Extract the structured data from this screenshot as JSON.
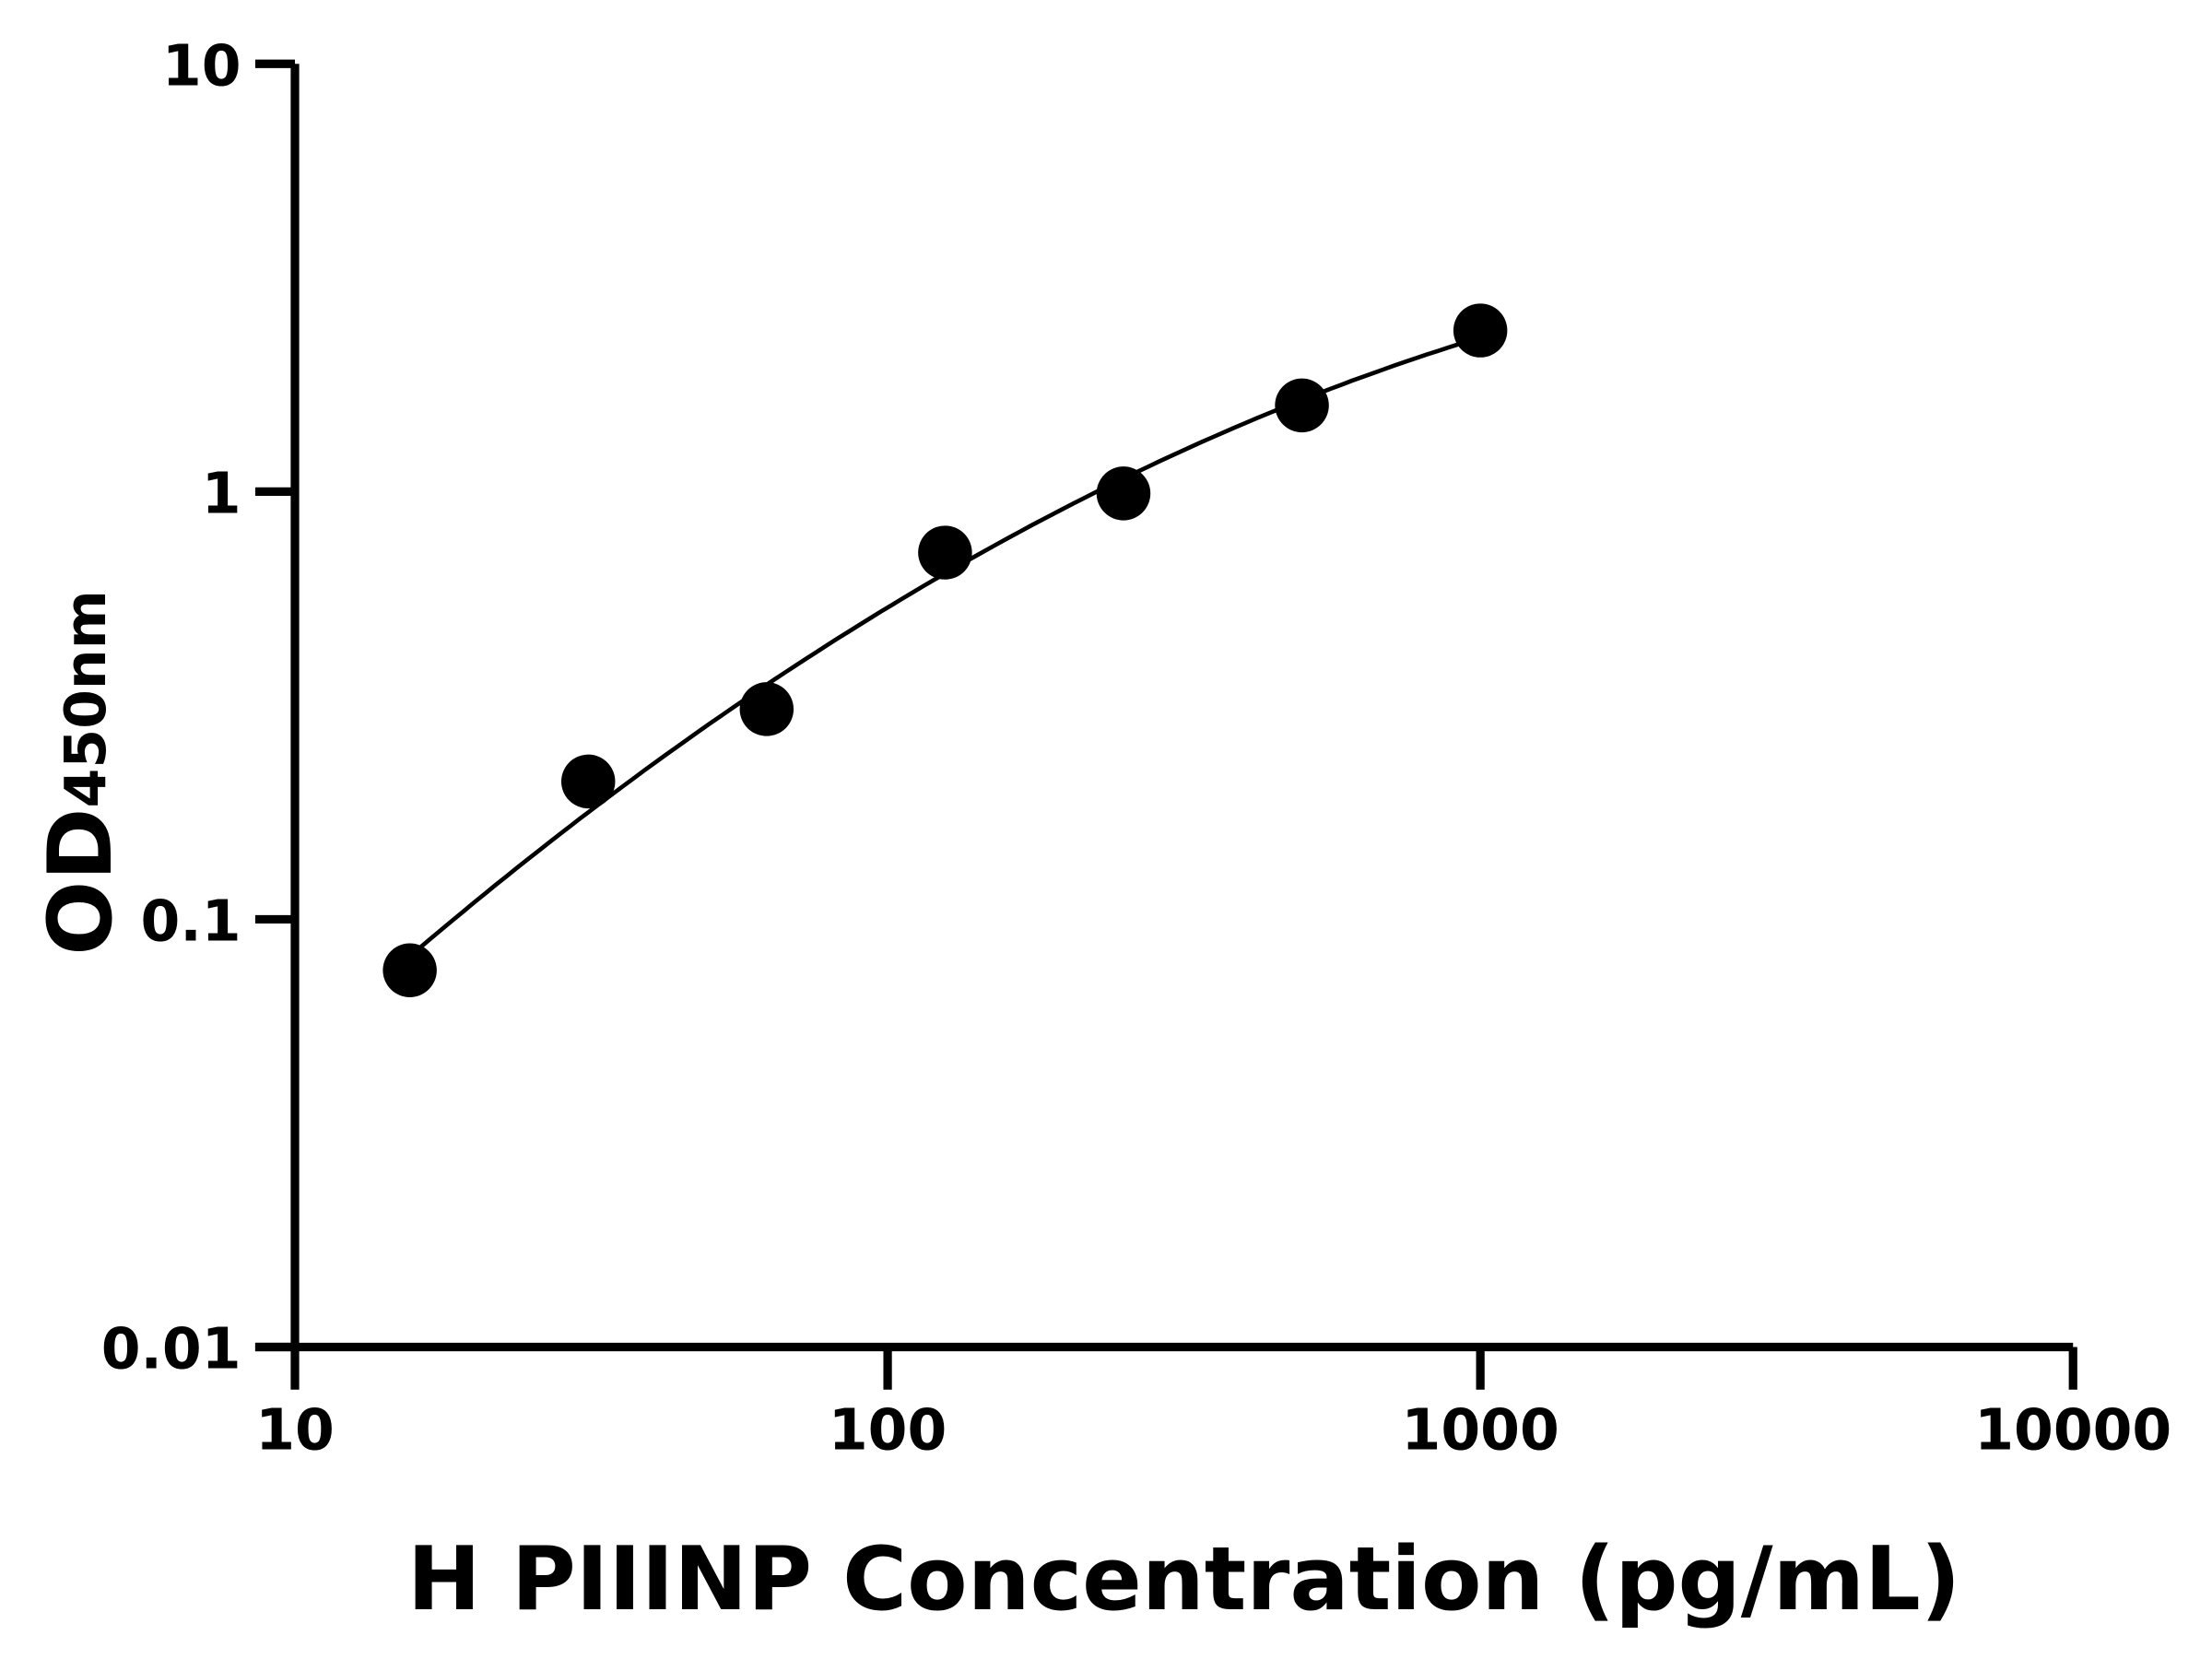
{
  "chart_data": {
    "type": "scatter",
    "title": "",
    "xlabel": "H PIIINP Concentration (pg/mL)",
    "ylabel_main": "OD",
    "ylabel_sub": "450nm",
    "x_scale": "log",
    "y_scale": "log",
    "xlim": [
      10,
      10000
    ],
    "ylim": [
      0.01,
      10
    ],
    "x_ticks": [
      "10",
      "100",
      "1000",
      "10000"
    ],
    "y_ticks": [
      "0.01",
      "0.1",
      "1",
      "10"
    ],
    "grid": false,
    "fit_curve": true,
    "colors": {
      "points": "#000000",
      "curve": "#000000",
      "axes": "#000000"
    },
    "points": [
      {
        "x": 15.625,
        "y": 0.076
      },
      {
        "x": 31.25,
        "y": 0.21
      },
      {
        "x": 62.5,
        "y": 0.31
      },
      {
        "x": 125,
        "y": 0.72
      },
      {
        "x": 250,
        "y": 0.99
      },
      {
        "x": 500,
        "y": 1.59
      },
      {
        "x": 1000,
        "y": 2.38
      }
    ]
  }
}
